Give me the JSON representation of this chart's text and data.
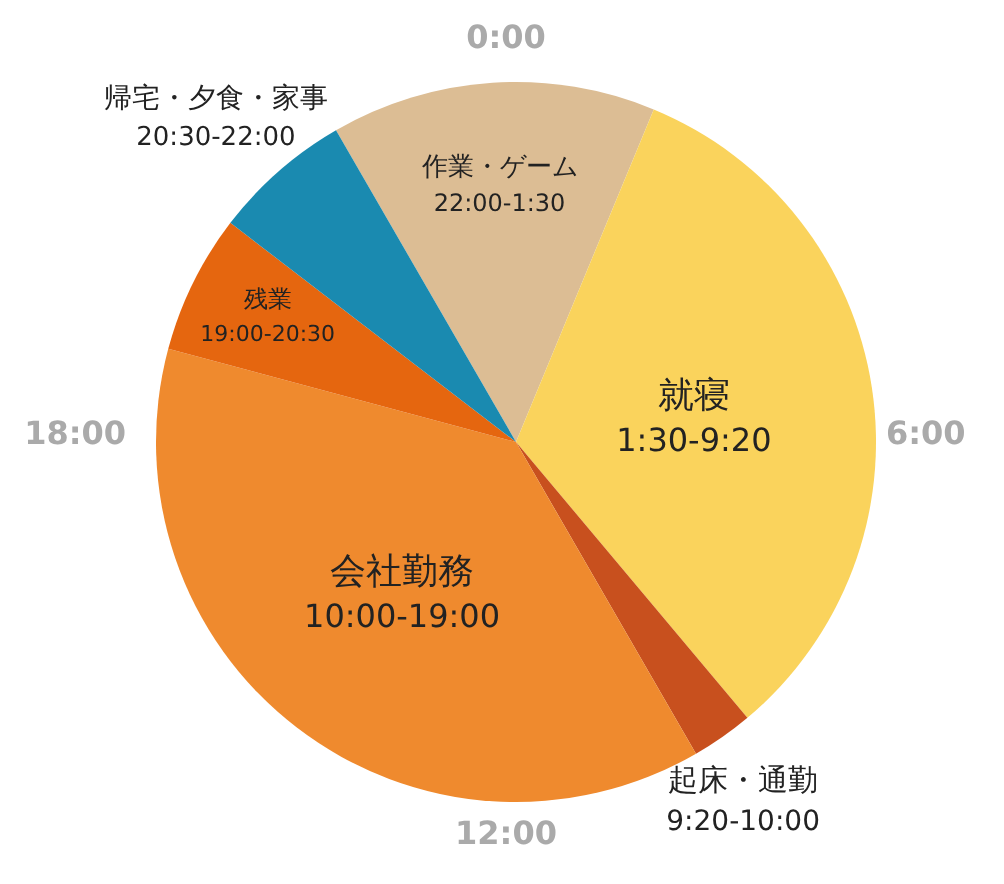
{
  "chart_data": {
    "type": "pie",
    "categories": [
      "作業・ゲーム",
      "就寝",
      "起床・通勤",
      "会社勤務",
      "残業",
      "帰宅・夕食・家事"
    ],
    "values": [
      14.583,
      32.639,
      2.778,
      37.5,
      6.25,
      6.25
    ],
    "colors": [
      "#dcbd94",
      "#fad35c",
      "#c8501e",
      "#ef8a2e",
      "#e5660f",
      "#1a8ab0"
    ],
    "annotations": [
      "0:00",
      "6:00",
      "12:00",
      "18:00",
      "22:00-1:30",
      "1:30-9:20",
      "9:20-10:00",
      "10:00-19:00",
      "19:00-20:30",
      "20:30-22:00"
    ],
    "legend": false
  }
}
